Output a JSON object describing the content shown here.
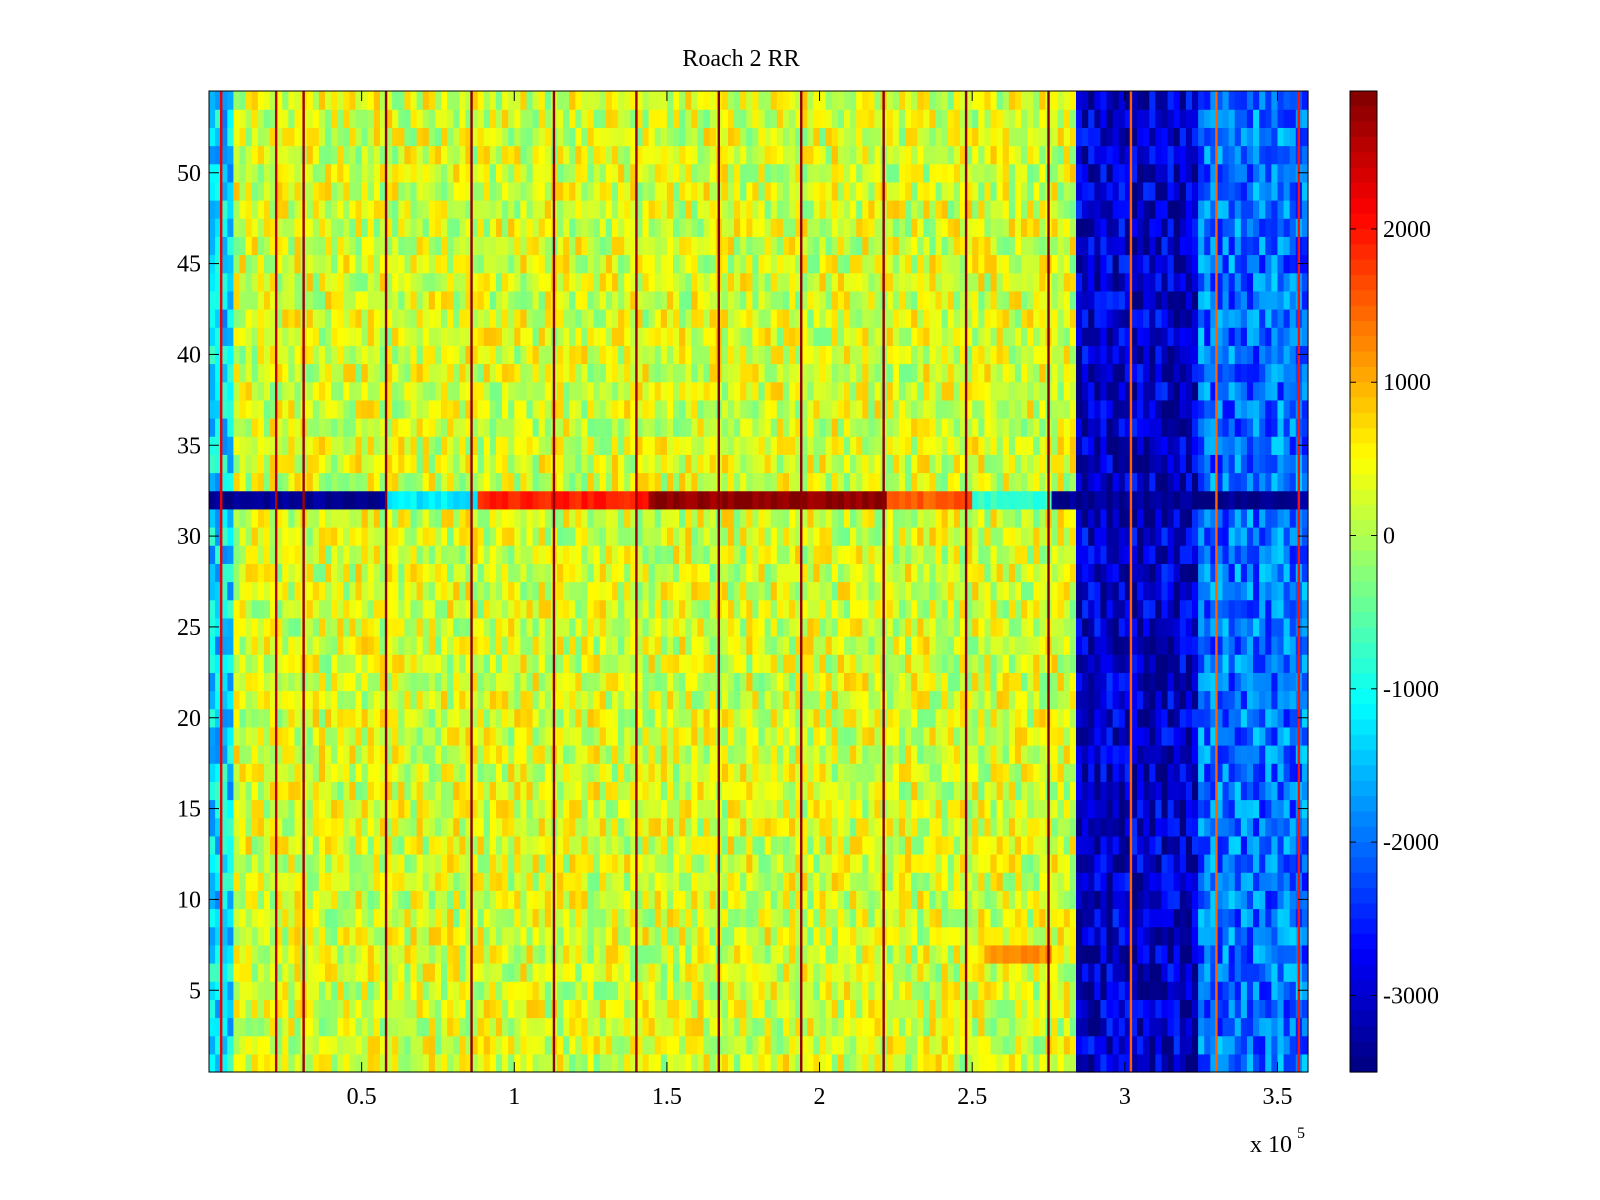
{
  "chart_data": {
    "type": "heatmap",
    "title": "Roach 2 RR",
    "xlabel": "",
    "ylabel": "",
    "x_multiplier_label": "x 10",
    "x_multiplier_exponent": "5",
    "xlim": [
      0,
      3.6
    ],
    "ylim": [
      0.5,
      54.5
    ],
    "x_ticks": [
      {
        "value": 0.5,
        "label": "0.5"
      },
      {
        "value": 1,
        "label": "1"
      },
      {
        "value": 1.5,
        "label": "1.5"
      },
      {
        "value": 2,
        "label": "2"
      },
      {
        "value": 2.5,
        "label": "2.5"
      },
      {
        "value": 3,
        "label": "3"
      },
      {
        "value": 3.5,
        "label": "3.5"
      }
    ],
    "y_ticks": [
      {
        "value": 5,
        "label": "5"
      },
      {
        "value": 10,
        "label": "10"
      },
      {
        "value": 15,
        "label": "15"
      },
      {
        "value": 20,
        "label": "20"
      },
      {
        "value": 25,
        "label": "25"
      },
      {
        "value": 30,
        "label": "30"
      },
      {
        "value": 35,
        "label": "35"
      },
      {
        "value": 40,
        "label": "40"
      },
      {
        "value": 45,
        "label": "45"
      },
      {
        "value": 50,
        "label": "50"
      }
    ],
    "colorbar": {
      "colormap": "jet",
      "range": [
        -3500,
        2900
      ],
      "ticks": [
        {
          "value": 2000,
          "label": "2000"
        },
        {
          "value": 1000,
          "label": "1000"
        },
        {
          "value": 0,
          "label": "0"
        },
        {
          "value": -1000,
          "label": "-1000"
        },
        {
          "value": -2000,
          "label": "-2000"
        },
        {
          "value": -3000,
          "label": "-3000"
        }
      ]
    },
    "rows": 54,
    "regions": [
      {
        "x_start": 0.0,
        "x_end": 0.07,
        "level": -1300,
        "note": "left edge cyan"
      },
      {
        "x_start": 0.07,
        "x_end": 2.84,
        "level": 250,
        "note": "main yellow-green band"
      },
      {
        "x_start": 2.84,
        "x_end": 3.25,
        "level": -3000,
        "note": "dark blue block"
      },
      {
        "x_start": 3.25,
        "x_end": 3.6,
        "level": -2000,
        "note": "blue-cyan right block"
      }
    ],
    "row_anomalies": [
      {
        "row": 32,
        "segments": [
          {
            "x_start": 0.0,
            "x_end": 0.58,
            "value": -3400
          },
          {
            "x_start": 0.58,
            "x_end": 0.89,
            "value": -1200
          },
          {
            "x_start": 0.89,
            "x_end": 1.45,
            "value": 1900
          },
          {
            "x_start": 1.45,
            "x_end": 2.22,
            "value": 2800
          },
          {
            "x_start": 2.22,
            "x_end": 2.5,
            "value": 1500
          },
          {
            "x_start": 2.5,
            "x_end": 2.76,
            "value": -800
          },
          {
            "x_start": 2.76,
            "x_end": 3.6,
            "value": -3400
          }
        ]
      },
      {
        "row": 7,
        "segments": [
          {
            "x_start": 2.55,
            "x_end": 2.76,
            "value": 1200
          }
        ]
      }
    ],
    "vertical_stripes": [
      {
        "x": 0.04,
        "value": 2200
      },
      {
        "x": 0.22,
        "value": 2500
      },
      {
        "x": 0.31,
        "value": 2700
      },
      {
        "x": 0.58,
        "value": 2800
      },
      {
        "x": 0.86,
        "value": 2800
      },
      {
        "x": 1.13,
        "value": 2800
      },
      {
        "x": 1.4,
        "value": 2700
      },
      {
        "x": 1.67,
        "value": 2900
      },
      {
        "x": 1.94,
        "value": 2800
      },
      {
        "x": 2.21,
        "value": 2800
      },
      {
        "x": 2.48,
        "value": 2800
      },
      {
        "x": 2.75,
        "value": 2900
      },
      {
        "x": 3.02,
        "value": 1500
      },
      {
        "x": 3.3,
        "value": 1500
      },
      {
        "x": 3.57,
        "value": 2000
      }
    ]
  }
}
